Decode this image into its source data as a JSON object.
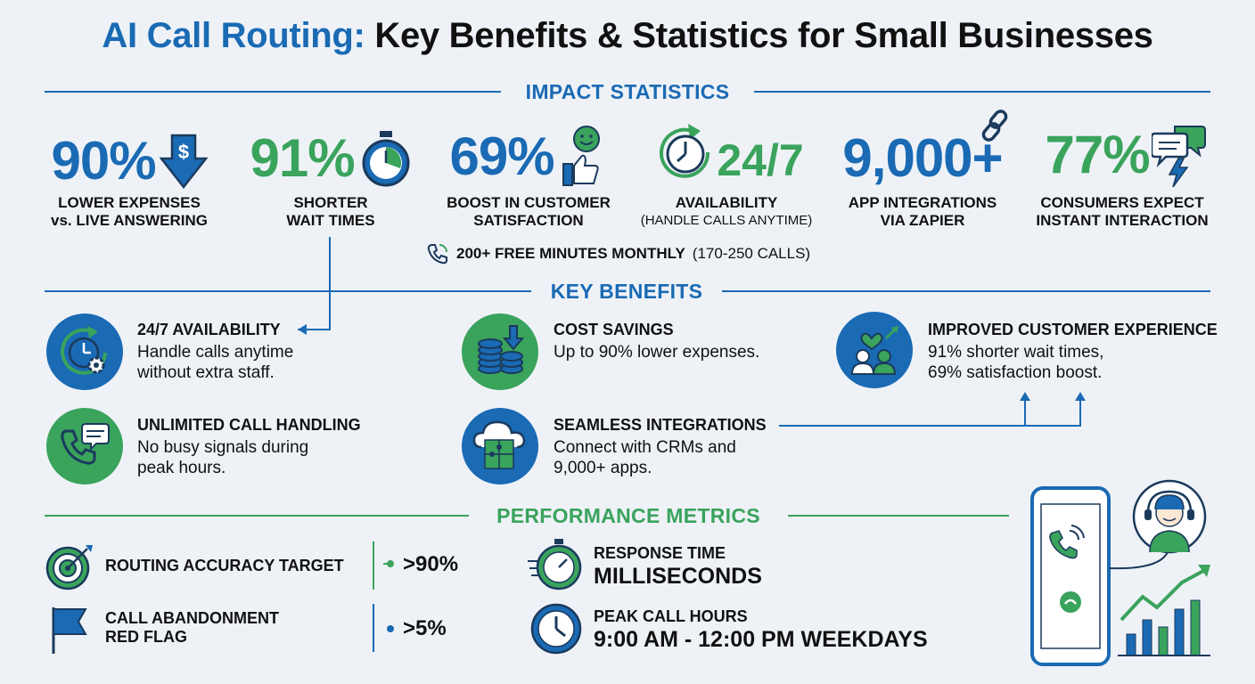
{
  "title": {
    "part1": "AI Call Routing:",
    "part2": "Key Benefits & Statistics for Small Businesses"
  },
  "sections": {
    "impact": "IMPACT STATISTICS",
    "benefits": "KEY BENEFITS",
    "metrics": "PERFORMANCE METRICS"
  },
  "stats": [
    {
      "value": "90%",
      "line1": "LOWER EXPENSES",
      "line2": "vs. LIVE ANSWERING",
      "icon": "dollar-down-arrow-icon"
    },
    {
      "value": "91%",
      "line1": "SHORTER",
      "line2": "WAIT TIMES",
      "icon": "stopwatch-icon"
    },
    {
      "value": "69%",
      "line1": "BOOST IN CUSTOMER",
      "line2": "SATISFACTION",
      "icon": "smile-thumbs-up-icon"
    },
    {
      "value": "24/7",
      "line1": "AVAILABILITY",
      "line2": "(HANDLE CALLS ANYTIME)",
      "icon": "clock-refresh-icon"
    },
    {
      "value": "9,000+",
      "line1": "APP INTEGRATIONS",
      "line2": "VIA ZAPIER",
      "icon": "link-icon"
    },
    {
      "value": "77%",
      "line1": "CONSUMERS EXPECT",
      "line2": "INSTANT INTERACTION",
      "icon": "chat-bolt-icon"
    }
  ],
  "free_minutes": {
    "bold": "200+ FREE MINUTES MONTHLY",
    "rest": "(170-250 CALLS)",
    "icon": "phone-icon"
  },
  "benefits": [
    {
      "title": "24/7 AVAILABILITY",
      "line1": "Handle calls anytime",
      "line2": "without extra staff.",
      "icon": "clock-gear-icon"
    },
    {
      "title": "COST SAVINGS",
      "line1": "Up to 90% lower expenses.",
      "line2": "",
      "icon": "coins-down-icon"
    },
    {
      "title": "IMPROVED CUSTOMER EXPERIENCE",
      "line1": "91% shorter wait times,",
      "line2": "69% satisfaction boost.",
      "icon": "people-heart-icon"
    },
    {
      "title": "UNLIMITED CALL HANDLING",
      "line1": "No busy signals during",
      "line2": "peak hours.",
      "icon": "phone-chat-icon"
    },
    {
      "title": "SEAMLESS INTEGRATIONS",
      "line1": "Connect with CRMs and",
      "line2": "9,000+ apps.",
      "icon": "cloud-puzzle-icon"
    }
  ],
  "metrics": [
    {
      "label1": "ROUTING ACCURACY TARGET",
      "label2": "",
      "value": ">90%",
      "icon": "target-icon"
    },
    {
      "label1": "CALL ABANDONMENT",
      "label2": "RED FLAG",
      "value": ">5%",
      "icon": "flag-icon"
    },
    {
      "label": "RESPONSE TIME",
      "value": "MILLISECONDS",
      "icon": "stopwatch-icon"
    },
    {
      "label": "PEAK CALL HOURS",
      "value": "9:00 AM - 12:00 PM WEEKDAYS",
      "icon": "clock-icon"
    }
  ],
  "colors": {
    "blue": "#1a6ab4",
    "green": "#3aa35c",
    "dark": "#1b3a5c",
    "background": "#eef2f7"
  }
}
